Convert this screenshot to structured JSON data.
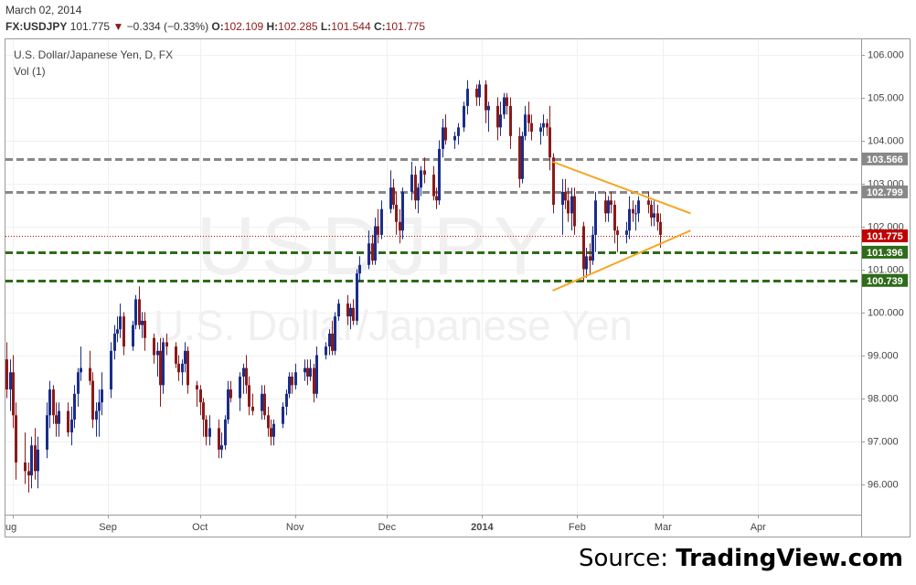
{
  "header": {
    "date": "March 02, 2014",
    "ticker": "FX:USDJPY",
    "last": "101.775",
    "down_arrow": "▼",
    "change": "−0.334 (−0.33%)",
    "o_label": "O:",
    "o_value": "102.109",
    "h_label": "H:",
    "h_value": "102.285",
    "l_label": "L:",
    "l_value": "101.544",
    "c_label": "C:",
    "c_value": "101.775"
  },
  "legend": {
    "title": "U.S. Dollar/Japanese Yen, D, FX",
    "vol": "Vol (1)"
  },
  "watermark": {
    "symbol": "USDJPY",
    "name": "U.S. Dollar/Japanese Yen"
  },
  "source": {
    "prefix": "Source: ",
    "brand": "TradingView.com"
  },
  "colors": {
    "up": "#1a2e8a",
    "down": "#8b1a1a",
    "support": "#2e6b1a",
    "resistance": "#888888",
    "triangle": "#f5a623",
    "current": "#c00000"
  },
  "chart_data": {
    "type": "candlestick",
    "title": "U.S. Dollar/Japanese Yen, D, FX",
    "ylim": [
      95.3,
      106.2
    ],
    "y_ticks": [
      "96.000",
      "97.000",
      "98.000",
      "99.000",
      "100.000",
      "101.000",
      "102.000",
      "103.000",
      "104.000",
      "105.000",
      "106.000"
    ],
    "x_ticks": [
      {
        "label": "ug",
        "date": "2013-08-01"
      },
      {
        "label": "Sep",
        "date": "2013-09-01"
      },
      {
        "label": "Oct",
        "date": "2013-10-01"
      },
      {
        "label": "Nov",
        "date": "2013-11-01"
      },
      {
        "label": "Dec",
        "date": "2013-12-01"
      },
      {
        "label": "2014",
        "date": "2014-01-01"
      },
      {
        "label": "Feb",
        "date": "2014-02-01"
      },
      {
        "label": "Mar",
        "date": "2014-03-01"
      },
      {
        "label": "Apr",
        "date": "2014-04-01"
      }
    ],
    "x_start": "2013-07-29",
    "horizontal_levels": [
      {
        "value": 103.566,
        "label": "103.566",
        "style": "resistance"
      },
      {
        "value": 102.799,
        "label": "102.799",
        "style": "resistance"
      },
      {
        "value": 101.775,
        "label": "101.775",
        "style": "current"
      },
      {
        "value": 101.396,
        "label": "101.396",
        "style": "support"
      },
      {
        "value": 100.739,
        "label": "100.739",
        "style": "support"
      }
    ],
    "trendlines": [
      {
        "from": [
          "2014-01-24",
          103.5
        ],
        "to": [
          "2014-03-10",
          102.3
        ]
      },
      {
        "from": [
          "2014-01-24",
          100.5
        ],
        "to": [
          "2014-03-10",
          101.9
        ]
      }
    ],
    "candles": [
      [
        "2013-07-29",
        99.6,
        99.8,
        98.4,
        98.9
      ],
      [
        "2013-07-30",
        98.9,
        99.3,
        98.0,
        98.2
      ],
      [
        "2013-07-31",
        98.2,
        98.9,
        97.7,
        98.6
      ],
      [
        "2013-08-01",
        98.6,
        99.0,
        97.3,
        97.6
      ],
      [
        "2013-08-02",
        97.6,
        97.9,
        96.1,
        96.5
      ],
      [
        "2013-08-05",
        96.5,
        97.2,
        96.0,
        96.3
      ],
      [
        "2013-08-06",
        96.3,
        96.5,
        95.8,
        96.2
      ],
      [
        "2013-08-07",
        96.2,
        97.1,
        95.9,
        96.9
      ],
      [
        "2013-08-08",
        96.9,
        97.3,
        96.1,
        96.3
      ],
      [
        "2013-08-09",
        96.3,
        97.1,
        95.9,
        96.8
      ],
      [
        "2013-08-12",
        96.8,
        97.9,
        96.6,
        97.6
      ],
      [
        "2013-08-13",
        97.6,
        98.4,
        97.3,
        98.2
      ],
      [
        "2013-08-14",
        98.2,
        98.3,
        97.4,
        97.6
      ],
      [
        "2013-08-15",
        97.6,
        97.9,
        97.1,
        97.4
      ],
      [
        "2013-08-16",
        97.4,
        97.9,
        97.1,
        97.7
      ],
      [
        "2013-08-19",
        97.7,
        97.9,
        97.1,
        97.2
      ],
      [
        "2013-08-20",
        97.2,
        97.8,
        96.9,
        97.5
      ],
      [
        "2013-08-21",
        97.5,
        98.3,
        97.3,
        98.1
      ],
      [
        "2013-08-22",
        98.1,
        98.7,
        97.8,
        98.6
      ],
      [
        "2013-08-23",
        98.6,
        99.2,
        98.4,
        98.7
      ],
      [
        "2013-08-26",
        98.7,
        99.1,
        98.3,
        98.4
      ],
      [
        "2013-08-27",
        98.4,
        98.6,
        97.3,
        97.5
      ],
      [
        "2013-08-28",
        97.5,
        97.9,
        97.1,
        97.7
      ],
      [
        "2013-08-29",
        97.7,
        98.2,
        97.1,
        97.9
      ],
      [
        "2013-08-30",
        97.9,
        98.6,
        97.6,
        98.2
      ],
      [
        "2013-09-02",
        98.2,
        99.3,
        98.0,
        99.1
      ],
      [
        "2013-09-03",
        99.1,
        99.7,
        98.9,
        99.5
      ],
      [
        "2013-09-04",
        99.5,
        99.9,
        99.3,
        99.6
      ],
      [
        "2013-09-05",
        99.6,
        100.2,
        99.4,
        99.9
      ],
      [
        "2013-09-06",
        99.9,
        100.0,
        99.0,
        99.2
      ],
      [
        "2013-09-09",
        99.2,
        99.8,
        99.1,
        99.7
      ],
      [
        "2013-09-10",
        99.7,
        100.4,
        99.6,
        100.3
      ],
      [
        "2013-09-11",
        100.3,
        100.6,
        99.6,
        99.7
      ],
      [
        "2013-09-12",
        99.7,
        100.0,
        99.4,
        99.8
      ],
      [
        "2013-09-13",
        99.8,
        100.0,
        99.1,
        99.4
      ],
      [
        "2013-09-16",
        99.4,
        99.5,
        98.8,
        99.0
      ],
      [
        "2013-09-17",
        99.0,
        99.3,
        98.5,
        99.1
      ],
      [
        "2013-09-18",
        99.1,
        99.4,
        97.8,
        98.3
      ],
      [
        "2013-09-19",
        98.3,
        99.4,
        98.1,
        99.3
      ],
      [
        "2013-09-20",
        99.3,
        99.5,
        99.0,
        99.2
      ],
      [
        "2013-09-23",
        99.2,
        99.3,
        98.7,
        98.8
      ],
      [
        "2013-09-24",
        98.8,
        99.0,
        98.4,
        98.6
      ],
      [
        "2013-09-25",
        98.6,
        98.9,
        98.3,
        98.8
      ],
      [
        "2013-09-26",
        98.8,
        99.3,
        98.6,
        99.1
      ],
      [
        "2013-09-27",
        99.1,
        99.2,
        98.1,
        98.3
      ],
      [
        "2013-09-30",
        98.3,
        98.4,
        97.8,
        98.2
      ],
      [
        "2013-10-01",
        98.2,
        98.3,
        97.6,
        97.9
      ],
      [
        "2013-10-02",
        97.9,
        98.0,
        97.1,
        97.5
      ],
      [
        "2013-10-03",
        97.5,
        97.6,
        96.9,
        97.1
      ],
      [
        "2013-10-04",
        97.1,
        97.6,
        96.9,
        97.3
      ],
      [
        "2013-10-07",
        97.3,
        97.5,
        96.6,
        96.8
      ],
      [
        "2013-10-08",
        96.8,
        97.2,
        96.6,
        96.9
      ],
      [
        "2013-10-09",
        96.9,
        97.6,
        96.8,
        97.5
      ],
      [
        "2013-10-10",
        97.5,
        98.4,
        97.4,
        98.2
      ],
      [
        "2013-10-11",
        98.2,
        98.4,
        97.9,
        98.0
      ],
      [
        "2013-10-14",
        98.0,
        98.6,
        97.7,
        98.5
      ],
      [
        "2013-10-15",
        98.5,
        98.8,
        98.1,
        98.7
      ],
      [
        "2013-10-16",
        98.7,
        99.0,
        98.1,
        98.3
      ],
      [
        "2013-10-17",
        98.3,
        98.5,
        97.6,
        97.8
      ],
      [
        "2013-10-18",
        97.8,
        98.1,
        97.6,
        97.7
      ],
      [
        "2013-10-21",
        97.7,
        98.3,
        97.5,
        98.1
      ],
      [
        "2013-10-22",
        98.1,
        98.3,
        97.5,
        97.6
      ],
      [
        "2013-10-23",
        97.6,
        97.8,
        97.1,
        97.3
      ],
      [
        "2013-10-24",
        97.3,
        97.5,
        96.9,
        97.1
      ],
      [
        "2013-10-25",
        97.1,
        97.5,
        96.9,
        97.4
      ],
      [
        "2013-10-28",
        97.4,
        97.9,
        97.3,
        97.8
      ],
      [
        "2013-10-29",
        97.8,
        98.2,
        97.6,
        98.1
      ],
      [
        "2013-10-30",
        98.1,
        98.6,
        98.0,
        98.5
      ],
      [
        "2013-10-31",
        98.5,
        98.6,
        98.1,
        98.3
      ],
      [
        "2013-11-01",
        98.3,
        98.8,
        98.2,
        98.6
      ],
      [
        "2013-11-04",
        98.6,
        98.9,
        98.4,
        98.7
      ],
      [
        "2013-11-05",
        98.7,
        98.9,
        98.3,
        98.5
      ],
      [
        "2013-11-06",
        98.5,
        98.9,
        98.4,
        98.7
      ],
      [
        "2013-11-07",
        98.7,
        98.8,
        97.9,
        98.1
      ],
      [
        "2013-11-08",
        98.1,
        99.2,
        98.0,
        99.0
      ],
      [
        "2013-11-11",
        99.0,
        99.3,
        98.9,
        99.2
      ],
      [
        "2013-11-12",
        99.2,
        99.6,
        99.0,
        99.5
      ],
      [
        "2013-11-13",
        99.5,
        99.8,
        99.0,
        99.1
      ],
      [
        "2013-11-14",
        99.1,
        100.0,
        99.0,
        99.9
      ],
      [
        "2013-11-15",
        99.9,
        100.3,
        99.8,
        100.2
      ],
      [
        "2013-11-18",
        100.2,
        100.4,
        99.7,
        99.9
      ],
      [
        "2013-11-19",
        99.9,
        100.2,
        99.6,
        100.1
      ],
      [
        "2013-11-20",
        100.1,
        100.3,
        99.7,
        99.8
      ],
      [
        "2013-11-21",
        99.8,
        101.0,
        99.7,
        100.9
      ],
      [
        "2013-11-22",
        100.9,
        101.3,
        100.7,
        101.1
      ],
      [
        "2013-11-25",
        101.1,
        101.9,
        101.0,
        101.6
      ],
      [
        "2013-11-26",
        101.6,
        101.8,
        101.1,
        101.2
      ],
      [
        "2013-11-27",
        101.2,
        102.2,
        101.1,
        102.0
      ],
      [
        "2013-11-28",
        102.0,
        102.4,
        101.6,
        101.8
      ],
      [
        "2013-11-29",
        101.8,
        102.6,
        101.7,
        102.4
      ],
      [
        "2013-12-02",
        102.4,
        103.3,
        102.3,
        102.9
      ],
      [
        "2013-12-03",
        102.9,
        103.1,
        102.4,
        102.5
      ],
      [
        "2013-12-04",
        102.5,
        102.8,
        101.8,
        102.1
      ],
      [
        "2013-12-05",
        102.1,
        102.4,
        101.6,
        101.9
      ],
      [
        "2013-12-06",
        101.9,
        102.9,
        101.7,
        102.8
      ],
      [
        "2013-12-09",
        102.8,
        103.5,
        102.6,
        103.2
      ],
      [
        "2013-12-10",
        103.2,
        103.4,
        102.4,
        102.6
      ],
      [
        "2013-12-11",
        102.6,
        103.0,
        102.3,
        102.9
      ],
      [
        "2013-12-12",
        102.9,
        103.4,
        102.7,
        103.3
      ],
      [
        "2013-12-13",
        103.3,
        103.6,
        103.0,
        103.2
      ],
      [
        "2013-12-16",
        103.2,
        103.4,
        102.6,
        102.7
      ],
      [
        "2013-12-17",
        102.7,
        102.9,
        102.4,
        102.6
      ],
      [
        "2013-12-18",
        102.6,
        104.0,
        102.5,
        103.8
      ],
      [
        "2013-12-19",
        103.8,
        104.5,
        103.6,
        104.3
      ],
      [
        "2013-12-20",
        104.3,
        104.6,
        103.9,
        104.0
      ],
      [
        "2013-12-23",
        104.0,
        104.2,
        103.8,
        104.1
      ],
      [
        "2013-12-24",
        104.1,
        104.4,
        103.9,
        104.3
      ],
      [
        "2013-12-26",
        104.3,
        104.9,
        104.2,
        104.8
      ],
      [
        "2013-12-27",
        104.8,
        105.4,
        104.6,
        105.2
      ],
      [
        "2013-12-30",
        105.2,
        105.3,
        104.8,
        105.0
      ],
      [
        "2013-12-31",
        105.0,
        105.4,
        104.8,
        105.3
      ],
      [
        "2014-01-02",
        105.3,
        105.4,
        104.4,
        104.7
      ],
      [
        "2014-01-03",
        104.7,
        104.9,
        104.2,
        104.8
      ],
      [
        "2014-01-06",
        104.8,
        105.0,
        104.0,
        104.3
      ],
      [
        "2014-01-07",
        104.3,
        104.9,
        104.1,
        104.6
      ],
      [
        "2014-01-08",
        104.6,
        105.1,
        104.5,
        105.0
      ],
      [
        "2014-01-09",
        105.0,
        105.1,
        104.6,
        104.8
      ],
      [
        "2014-01-10",
        104.8,
        105.0,
        103.8,
        104.1
      ],
      [
        "2014-01-13",
        104.1,
        104.3,
        102.9,
        103.1
      ],
      [
        "2014-01-14",
        103.1,
        104.2,
        103.0,
        104.1
      ],
      [
        "2014-01-15",
        104.1,
        104.8,
        104.0,
        104.6
      ],
      [
        "2014-01-16",
        104.6,
        104.9,
        104.2,
        104.4
      ],
      [
        "2014-01-17",
        104.4,
        104.6,
        104.0,
        104.2
      ],
      [
        "2014-01-20",
        104.2,
        104.4,
        103.9,
        104.3
      ],
      [
        "2014-01-21",
        104.3,
        104.6,
        104.1,
        104.4
      ],
      [
        "2014-01-22",
        104.4,
        104.5,
        104.1,
        104.3
      ],
      [
        "2014-01-23",
        104.3,
        104.8,
        103.3,
        103.6
      ],
      [
        "2014-01-24",
        103.6,
        103.7,
        102.3,
        102.5
      ],
      [
        "2014-01-27",
        102.5,
        103.1,
        101.8,
        102.8
      ],
      [
        "2014-01-28",
        102.8,
        103.1,
        102.4,
        102.6
      ],
      [
        "2014-01-29",
        102.6,
        102.9,
        102.1,
        102.3
      ],
      [
        "2014-01-30",
        102.3,
        102.9,
        101.9,
        102.7
      ],
      [
        "2014-01-31",
        102.7,
        102.9,
        101.8,
        102.0
      ],
      [
        "2014-02-03",
        102.0,
        102.1,
        100.7,
        101.0
      ],
      [
        "2014-02-04",
        101.0,
        101.5,
        100.8,
        101.3
      ],
      [
        "2014-02-05",
        101.3,
        101.6,
        100.9,
        101.2
      ],
      [
        "2014-02-06",
        101.2,
        102.0,
        101.1,
        101.8
      ],
      [
        "2014-02-07",
        101.8,
        102.8,
        101.4,
        102.6
      ],
      [
        "2014-02-10",
        102.6,
        102.8,
        102.1,
        102.3
      ],
      [
        "2014-02-11",
        102.3,
        102.7,
        102.1,
        102.6
      ],
      [
        "2014-02-12",
        102.6,
        102.8,
        102.3,
        102.5
      ],
      [
        "2014-02-13",
        102.5,
        102.6,
        101.6,
        101.9
      ],
      [
        "2014-02-14",
        101.9,
        102.0,
        101.4,
        101.8
      ],
      [
        "2014-02-17",
        101.8,
        102.1,
        101.6,
        101.9
      ],
      [
        "2014-02-18",
        101.9,
        102.7,
        101.7,
        102.4
      ],
      [
        "2014-02-19",
        102.4,
        102.6,
        102.1,
        102.3
      ],
      [
        "2014-02-20",
        102.3,
        102.5,
        101.9,
        102.3
      ],
      [
        "2014-02-21",
        102.3,
        102.7,
        102.1,
        102.6
      ],
      [
        "2014-02-24",
        102.6,
        102.8,
        102.3,
        102.5
      ],
      [
        "2014-02-25",
        102.5,
        102.6,
        102.0,
        102.2
      ],
      [
        "2014-02-26",
        102.2,
        102.6,
        102.0,
        102.3
      ],
      [
        "2014-02-27",
        102.3,
        102.5,
        101.9,
        102.1
      ],
      [
        "2014-02-28",
        102.1,
        102.3,
        101.5,
        101.8
      ]
    ]
  }
}
